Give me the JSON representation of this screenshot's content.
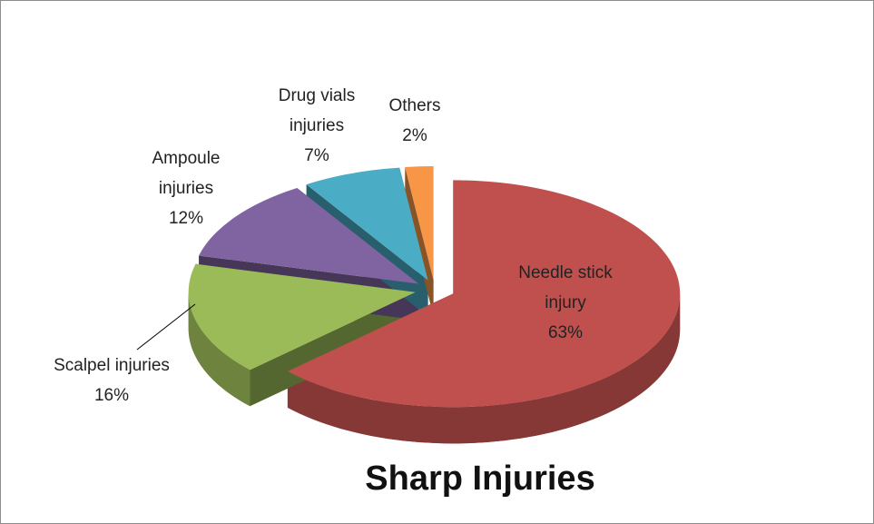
{
  "chart_data": {
    "type": "pie",
    "title": "Sharp Injuries",
    "categories": [
      "Needle stick injury",
      "Scalpel injuries",
      "Ampoule injuries",
      "Drug vials injuries",
      "Others"
    ],
    "values": [
      63,
      16,
      12,
      7,
      2
    ],
    "value_labels": [
      "63%",
      "16%",
      "12%",
      "7%",
      "2%"
    ],
    "colors": [
      "#c0504d",
      "#9bbb59",
      "#8064a2",
      "#4bacc6",
      "#f79646"
    ]
  }
}
